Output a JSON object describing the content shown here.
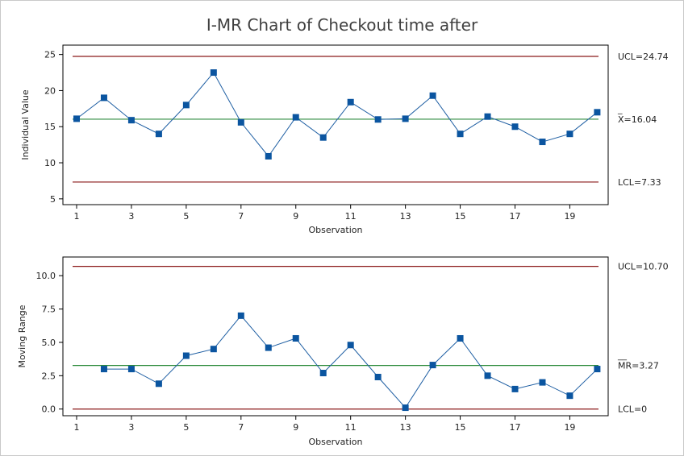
{
  "title": "I-MR Chart of Checkout  time after",
  "colors": {
    "series": "#1f5fa3",
    "marker": "#0b55a0",
    "center_line": "#2e8b3c",
    "control_limit": "#8b1a1a",
    "frame": "#c9c9c9"
  },
  "chart_data": [
    {
      "type": "line",
      "name": "individuals",
      "xlabel": "Observation",
      "ylabel": "Individual Value",
      "x": [
        1,
        2,
        3,
        4,
        5,
        6,
        7,
        8,
        9,
        10,
        11,
        12,
        13,
        14,
        15,
        16,
        17,
        18,
        19,
        20
      ],
      "values": [
        16.1,
        19.0,
        15.9,
        14.0,
        18.0,
        22.5,
        15.6,
        10.9,
        16.3,
        13.5,
        18.4,
        16.0,
        16.1,
        19.3,
        14.0,
        16.4,
        15.0,
        12.9,
        14.0,
        17.0
      ],
      "xticks": [
        1,
        3,
        5,
        7,
        9,
        11,
        13,
        15,
        17,
        19
      ],
      "yticks": [
        5,
        10,
        15,
        20,
        25
      ],
      "xlim": [
        0.5,
        20.4
      ],
      "ylim": [
        4.2,
        26.3
      ],
      "limits": {
        "ucl": {
          "value": 24.74,
          "label": "UCL=24.74"
        },
        "center": {
          "value": 16.04,
          "label": "X=16.04",
          "bar": "_"
        },
        "lcl": {
          "value": 7.33,
          "label": "LCL=7.33"
        }
      }
    },
    {
      "type": "line",
      "name": "moving-range",
      "xlabel": "Observation",
      "ylabel": "Moving Range",
      "x": [
        2,
        3,
        4,
        5,
        6,
        7,
        8,
        9,
        10,
        11,
        12,
        13,
        14,
        15,
        16,
        17,
        18,
        19,
        20
      ],
      "values": [
        3.0,
        3.0,
        1.9,
        4.0,
        4.5,
        7.0,
        4.6,
        5.3,
        2.7,
        4.8,
        2.4,
        0.1,
        3.3,
        5.3,
        2.5,
        1.5,
        2.0,
        1.0,
        3.0
      ],
      "xticks": [
        1,
        3,
        5,
        7,
        9,
        11,
        13,
        15,
        17,
        19
      ],
      "yticks": [
        0.0,
        2.5,
        5.0,
        7.5,
        10.0
      ],
      "yticklabels": [
        "0.0",
        "2.5",
        "5.0",
        "7.5",
        "10.0"
      ],
      "xlim": [
        0.5,
        20.4
      ],
      "ylim": [
        -0.5,
        11.4
      ],
      "limits": {
        "ucl": {
          "value": 10.7,
          "label": "UCL=10.70"
        },
        "center": {
          "value": 3.27,
          "label": "MR=3.27",
          "bar": "__"
        },
        "lcl": {
          "value": 0,
          "label": "LCL=0"
        }
      }
    }
  ]
}
